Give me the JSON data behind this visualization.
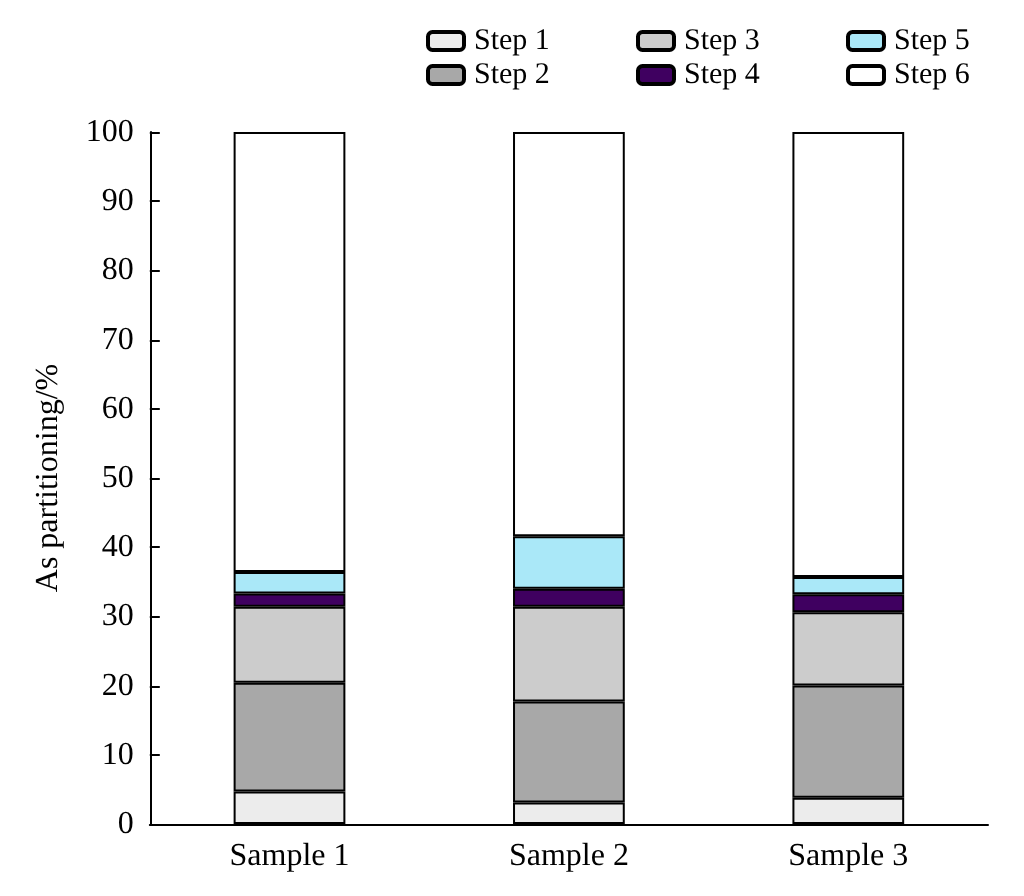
{
  "chart_data": {
    "type": "bar",
    "stacked": true,
    "ylabel": "As partitioning/%",
    "categories": [
      "Sample 1",
      "Sample 2",
      "Sample 3"
    ],
    "series": [
      {
        "name": "Step 1",
        "color": "#ececec",
        "values": [
          4.7,
          3.1,
          3.8
        ]
      },
      {
        "name": "Step 2",
        "color": "#a8a8a8",
        "values": [
          15.7,
          14.6,
          16.2
        ]
      },
      {
        "name": "Step 3",
        "color": "#cccccc",
        "values": [
          11.0,
          13.7,
          10.6
        ]
      },
      {
        "name": "Step 4",
        "color": "#3f0060",
        "values": [
          1.9,
          2.6,
          2.6
        ]
      },
      {
        "name": "Step 5",
        "color": "#aae8f8",
        "values": [
          3.1,
          7.6,
          2.5
        ]
      },
      {
        "name": "Step 6",
        "color": "#ffffff",
        "values": [
          63.6,
          58.4,
          64.3
        ]
      }
    ],
    "ylim": [
      0,
      100
    ],
    "yticks": [
      0,
      10,
      20,
      30,
      40,
      50,
      60,
      70,
      80,
      90,
      100
    ],
    "grid": false,
    "legend": "top"
  }
}
